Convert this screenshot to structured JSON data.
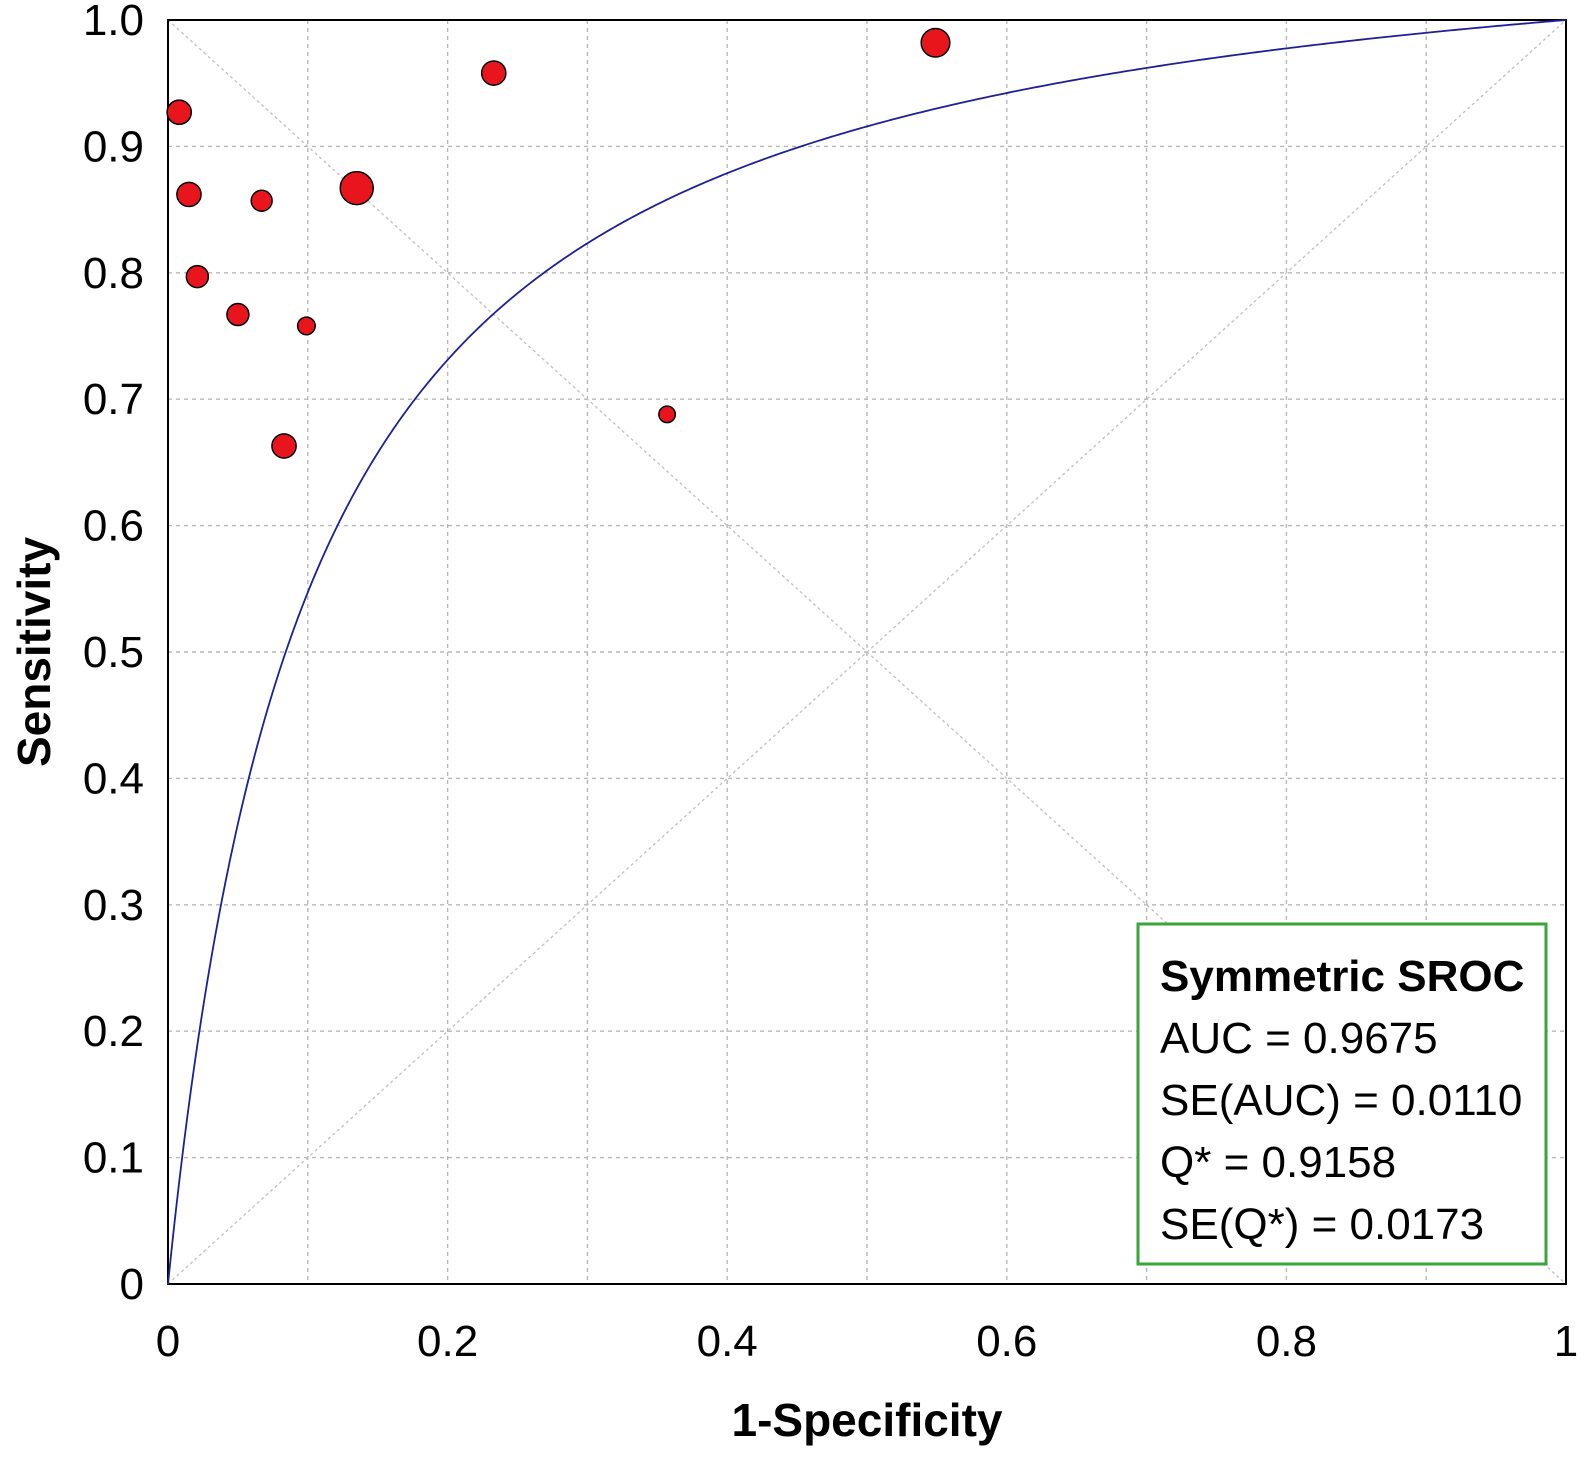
{
  "chart_data": {
    "type": "scatter",
    "xlabel": "1-Specificity",
    "ylabel": "Sensitivity",
    "xlim": [
      0,
      1
    ],
    "ylim": [
      0,
      1
    ],
    "x_ticks": [
      "0",
      "0.2",
      "0.4",
      "0.6",
      "0.8",
      "1"
    ],
    "x_tick_values": [
      0,
      0.2,
      0.4,
      0.6,
      0.8,
      1
    ],
    "y_ticks": [
      "0",
      "0.1",
      "0.2",
      "0.3",
      "0.4",
      "0.5",
      "0.6",
      "0.7",
      "0.8",
      "0.9",
      "1.0"
    ],
    "y_tick_values": [
      0,
      0.1,
      0.2,
      0.3,
      0.4,
      0.5,
      0.6,
      0.7,
      0.8,
      0.9,
      1.0
    ],
    "grid": true,
    "grid_step": 0.1,
    "diagonals": true,
    "curve": {
      "name": "Symmetric SROC",
      "q_star": 0.9158,
      "color": "#1f1f9a"
    },
    "points": [
      {
        "x": 0.008,
        "y": 0.927,
        "size": 1.1
      },
      {
        "x": 0.015,
        "y": 0.862,
        "size": 1.1
      },
      {
        "x": 0.021,
        "y": 0.797,
        "size": 1.0
      },
      {
        "x": 0.05,
        "y": 0.767,
        "size": 1.0
      },
      {
        "x": 0.067,
        "y": 0.857,
        "size": 0.95
      },
      {
        "x": 0.083,
        "y": 0.663,
        "size": 1.1
      },
      {
        "x": 0.099,
        "y": 0.758,
        "size": 0.8
      },
      {
        "x": 0.135,
        "y": 0.867,
        "size": 1.5
      },
      {
        "x": 0.233,
        "y": 0.958,
        "size": 1.1
      },
      {
        "x": 0.357,
        "y": 0.688,
        "size": 0.75
      },
      {
        "x": 0.549,
        "y": 0.982,
        "size": 1.3
      }
    ],
    "point_color": "#e8161c",
    "stats": {
      "title": "Symmetric SROC",
      "lines": [
        "AUC = 0.9675",
        "SE(AUC) = 0.0110",
        "Q* = 0.9158",
        "SE(Q*) = 0.0173"
      ],
      "border_color": "#3aa63a",
      "placement": "bottom-right"
    }
  }
}
